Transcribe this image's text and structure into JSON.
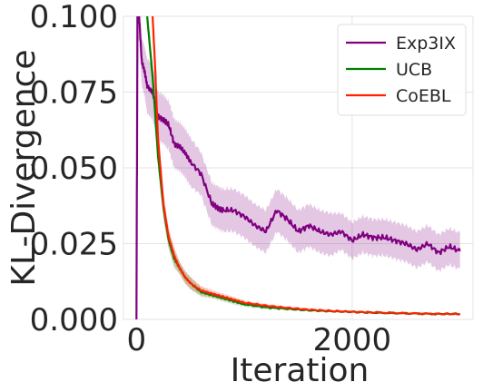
{
  "chart_data": {
    "type": "line",
    "title": "",
    "xlabel": "Iteration",
    "ylabel": "KL-Divergence",
    "xlim": [
      -120,
      3120
    ],
    "ylim": [
      0,
      0.1
    ],
    "xticks": [
      0,
      2000
    ],
    "xtick_labels": [
      "0",
      "2000"
    ],
    "yticks": [
      0,
      0.025,
      0.05,
      0.075,
      0.1
    ],
    "ytick_labels": [
      "0.000",
      "0.025",
      "0.050",
      "0.075",
      "0.100"
    ],
    "grid": true,
    "legend_position": "top-right",
    "series": [
      {
        "name": "Exp3IX",
        "color": "#800080",
        "x": [
          0,
          10,
          25,
          50,
          75,
          100,
          150,
          200,
          250,
          300,
          350,
          400,
          450,
          500,
          600,
          700,
          750,
          800,
          900,
          1000,
          1100,
          1200,
          1300,
          1400,
          1500,
          1600,
          1700,
          1800,
          1900,
          2000,
          2100,
          2200,
          2300,
          2400,
          2500,
          2600,
          2700,
          2800,
          2900,
          3000
        ],
        "values": [
          0.0,
          0.1,
          0.1,
          0.085,
          0.082,
          0.077,
          0.075,
          0.067,
          0.066,
          0.064,
          0.058,
          0.057,
          0.055,
          0.052,
          0.048,
          0.038,
          0.037,
          0.036,
          0.036,
          0.034,
          0.031,
          0.029,
          0.036,
          0.033,
          0.029,
          0.031,
          0.029,
          0.028,
          0.029,
          0.026,
          0.028,
          0.027,
          0.027,
          0.026,
          0.025,
          0.023,
          0.025,
          0.022,
          0.024,
          0.0225
        ],
        "band": [
          0,
          0.008,
          0.008,
          0.008,
          0.008,
          0.009,
          0.009,
          0.008,
          0.008,
          0.008,
          0.008,
          0.008,
          0.008,
          0.008,
          0.007,
          0.007,
          0.007,
          0.007,
          0.007,
          0.007,
          0.007,
          0.007,
          0.007,
          0.007,
          0.007,
          0.007,
          0.007,
          0.007,
          0.006,
          0.006,
          0.006,
          0.006,
          0.006,
          0.006,
          0.006,
          0.006,
          0.006,
          0.006,
          0.006,
          0.006
        ]
      },
      {
        "name": "UCB",
        "color": "#008000",
        "x": [
          100,
          150,
          200,
          250,
          300,
          350,
          400,
          450,
          500,
          600,
          700,
          800,
          900,
          1000,
          1200,
          1400,
          1600,
          1800,
          2000,
          2200,
          2500,
          2800,
          3000
        ],
        "values": [
          0.1,
          0.08,
          0.054,
          0.037,
          0.026,
          0.02,
          0.017,
          0.014,
          0.012,
          0.009,
          0.008,
          0.007,
          0.006,
          0.005,
          0.004,
          0.0035,
          0.003,
          0.0027,
          0.0025,
          0.0022,
          0.002,
          0.0018,
          0.0018
        ],
        "band": [
          0.004,
          0.004,
          0.004,
          0.004,
          0.003,
          0.003,
          0.002,
          0.002,
          0.002,
          0.0015,
          0.001,
          0.001,
          0.001,
          0.0008,
          0.0006,
          0.0005,
          0.0004,
          0.0004,
          0.0003,
          0.0003,
          0.0003,
          0.0003,
          0.0003
        ]
      },
      {
        "name": "CoEBL",
        "color": "#ff2200",
        "x": [
          150,
          175,
          200,
          250,
          300,
          350,
          400,
          450,
          500,
          600,
          700,
          800,
          900,
          1000,
          1200,
          1400,
          1600,
          1800,
          2000,
          2200,
          2500,
          2800,
          3000
        ],
        "values": [
          0.1,
          0.082,
          0.06,
          0.038,
          0.027,
          0.021,
          0.017,
          0.014,
          0.012,
          0.0095,
          0.0085,
          0.0075,
          0.0065,
          0.0055,
          0.0045,
          0.0038,
          0.0032,
          0.0028,
          0.0025,
          0.0023,
          0.002,
          0.0018,
          0.0018
        ],
        "band": [
          0.005,
          0.005,
          0.004,
          0.004,
          0.003,
          0.003,
          0.002,
          0.002,
          0.002,
          0.0015,
          0.0012,
          0.001,
          0.001,
          0.0008,
          0.0006,
          0.0005,
          0.0004,
          0.0004,
          0.0003,
          0.0003,
          0.0003,
          0.0003,
          0.0003
        ]
      }
    ]
  }
}
